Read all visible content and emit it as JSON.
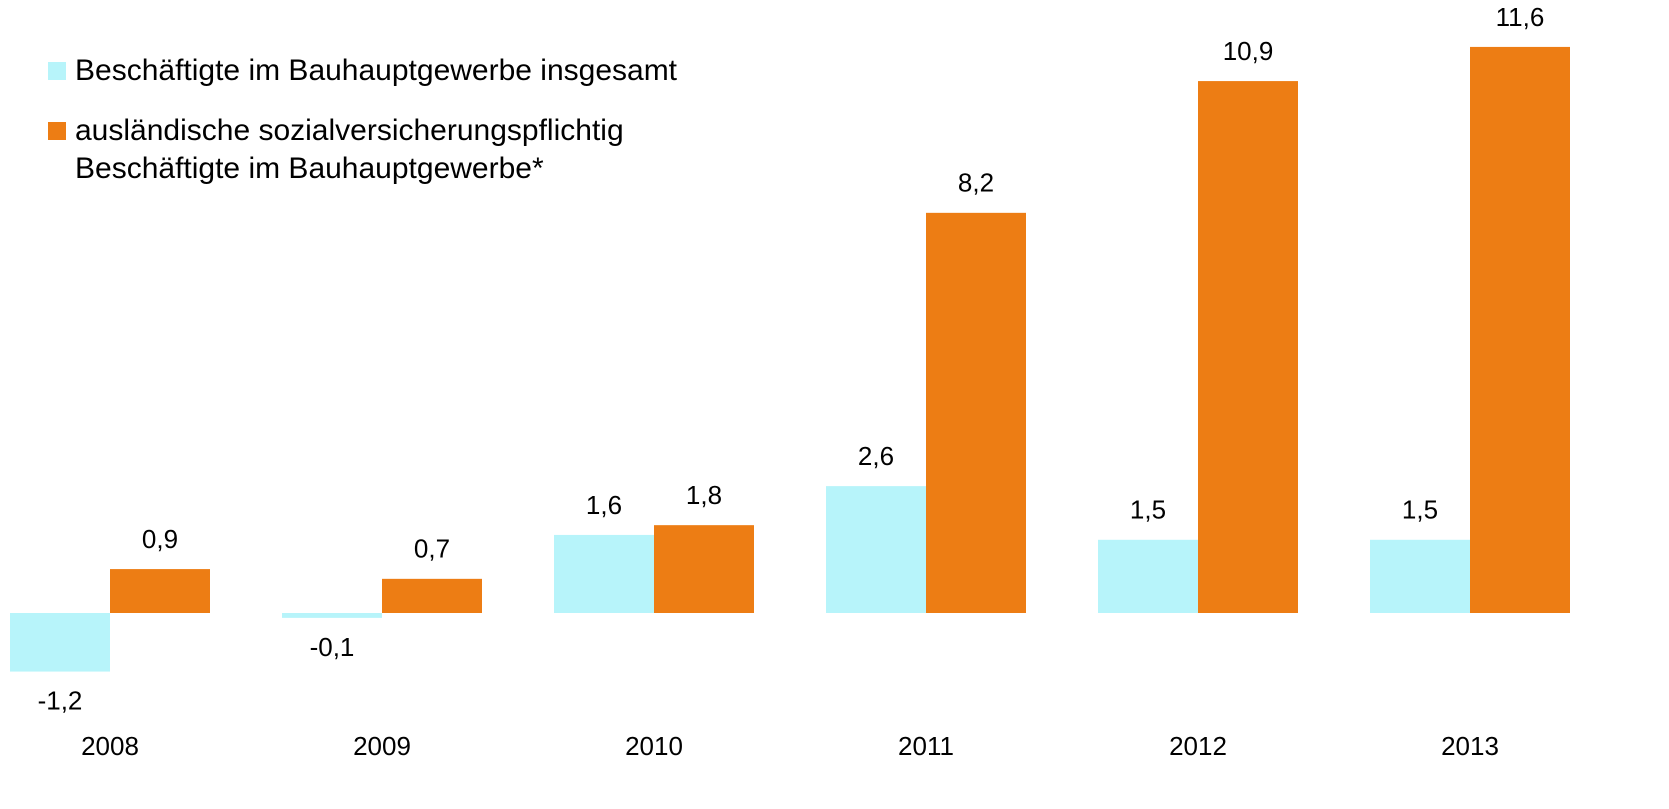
{
  "chart_data": {
    "type": "bar",
    "categories": [
      "2008",
      "2009",
      "2010",
      "2011",
      "2012",
      "2013"
    ],
    "series": [
      {
        "name": "Beschäftigte im Bauhauptgewerbe insgesamt",
        "color": "#b7f4fa",
        "values": [
          -1.2,
          -0.1,
          1.6,
          2.6,
          1.5,
          1.5
        ],
        "value_labels": [
          "-1,2",
          "-0,1",
          "1,6",
          "2,6",
          "1,5",
          "1,5"
        ]
      },
      {
        "name": "ausländische sozialversicherungspflichtig Beschäftigte im Bauhauptgewerbe*",
        "color": "#ed7d14",
        "values": [
          0.9,
          0.7,
          1.8,
          8.2,
          10.9,
          11.6
        ],
        "value_labels": [
          "0,9",
          "0,7",
          "1,8",
          "8,2",
          "10,9",
          "11,6"
        ]
      }
    ],
    "ylim": [
      -2,
      12
    ],
    "legend": "upper left"
  }
}
